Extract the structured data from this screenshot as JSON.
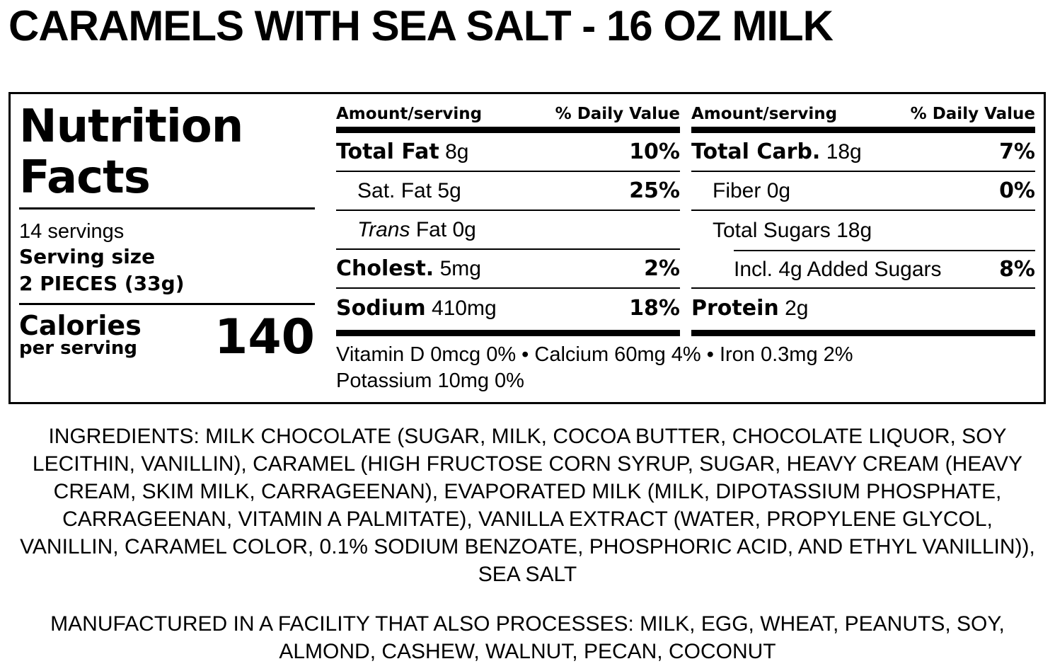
{
  "product_title": "CARAMELS WITH SEA SALT - 16 OZ MILK",
  "nutrition": {
    "heading_line1": "Nutrition",
    "heading_line2": "Facts",
    "servings": "14 servings",
    "serving_size_label": "Serving size",
    "serving_size_value": "2 PIECES (33g)",
    "calories_label": "Calories",
    "calories_sub": "per serving",
    "calories_value": "140",
    "col_header_amount": "Amount/serving",
    "col_header_dv": "% Daily Value",
    "left_rows": [
      {
        "name": "Total Fat",
        "amount": "8g",
        "dv": "10%"
      },
      {
        "name": "Sat. Fat",
        "amount": "5g",
        "dv": "25%"
      },
      {
        "name": "Trans",
        "amount": "Fat 0g",
        "dv": ""
      },
      {
        "name": "Cholest.",
        "amount": "5mg",
        "dv": "2%"
      },
      {
        "name": "Sodium",
        "amount": "410mg",
        "dv": "18%"
      }
    ],
    "right_rows": [
      {
        "name": "Total Carb.",
        "amount": "18g",
        "dv": "7%"
      },
      {
        "name": "Fiber",
        "amount": "0g",
        "dv": "0%"
      },
      {
        "name": "Total Sugars",
        "amount": "18g",
        "dv": ""
      },
      {
        "name": "Incl. 4g Added Sugars",
        "amount": "",
        "dv": "8%"
      },
      {
        "name": "Protein",
        "amount": "2g",
        "dv": ""
      }
    ],
    "vitamins_line1": "Vitamin D 0mcg 0% • Calcium 60mg 4% • Iron 0.3mg 2%",
    "vitamins_line2": "Potassium 10mg 0%"
  },
  "ingredients": "INGREDIENTS: MILK CHOCOLATE (SUGAR, MILK, COCOA BUTTER, CHOCOLATE LIQUOR, SOY LECITHIN, VANILLIN), CARAMEL (HIGH FRUCTOSE CORN SYRUP, SUGAR, HEAVY CREAM (HEAVY CREAM, SKIM MILK, CARRAGEENAN), EVAPORATED MILK (MILK, DIPOTASSIUM PHOSPHATE, CARRAGEENAN, VITAMIN A PALMITATE), VANILLA EXTRACT (WATER, PROPYLENE GLYCOL, VANILLIN, CARAMEL COLOR, 0.1% SODIUM BENZOATE, PHOSPHORIC ACID, AND ETHYL VANILLIN)), SEA SALT",
  "facility_statement": "MANUFACTURED IN A FACILITY THAT ALSO PROCESSES: MILK, EGG, WHEAT, PEANUTS, SOY, ALMOND, CASHEW, WALNUT, PECAN, COCONUT"
}
